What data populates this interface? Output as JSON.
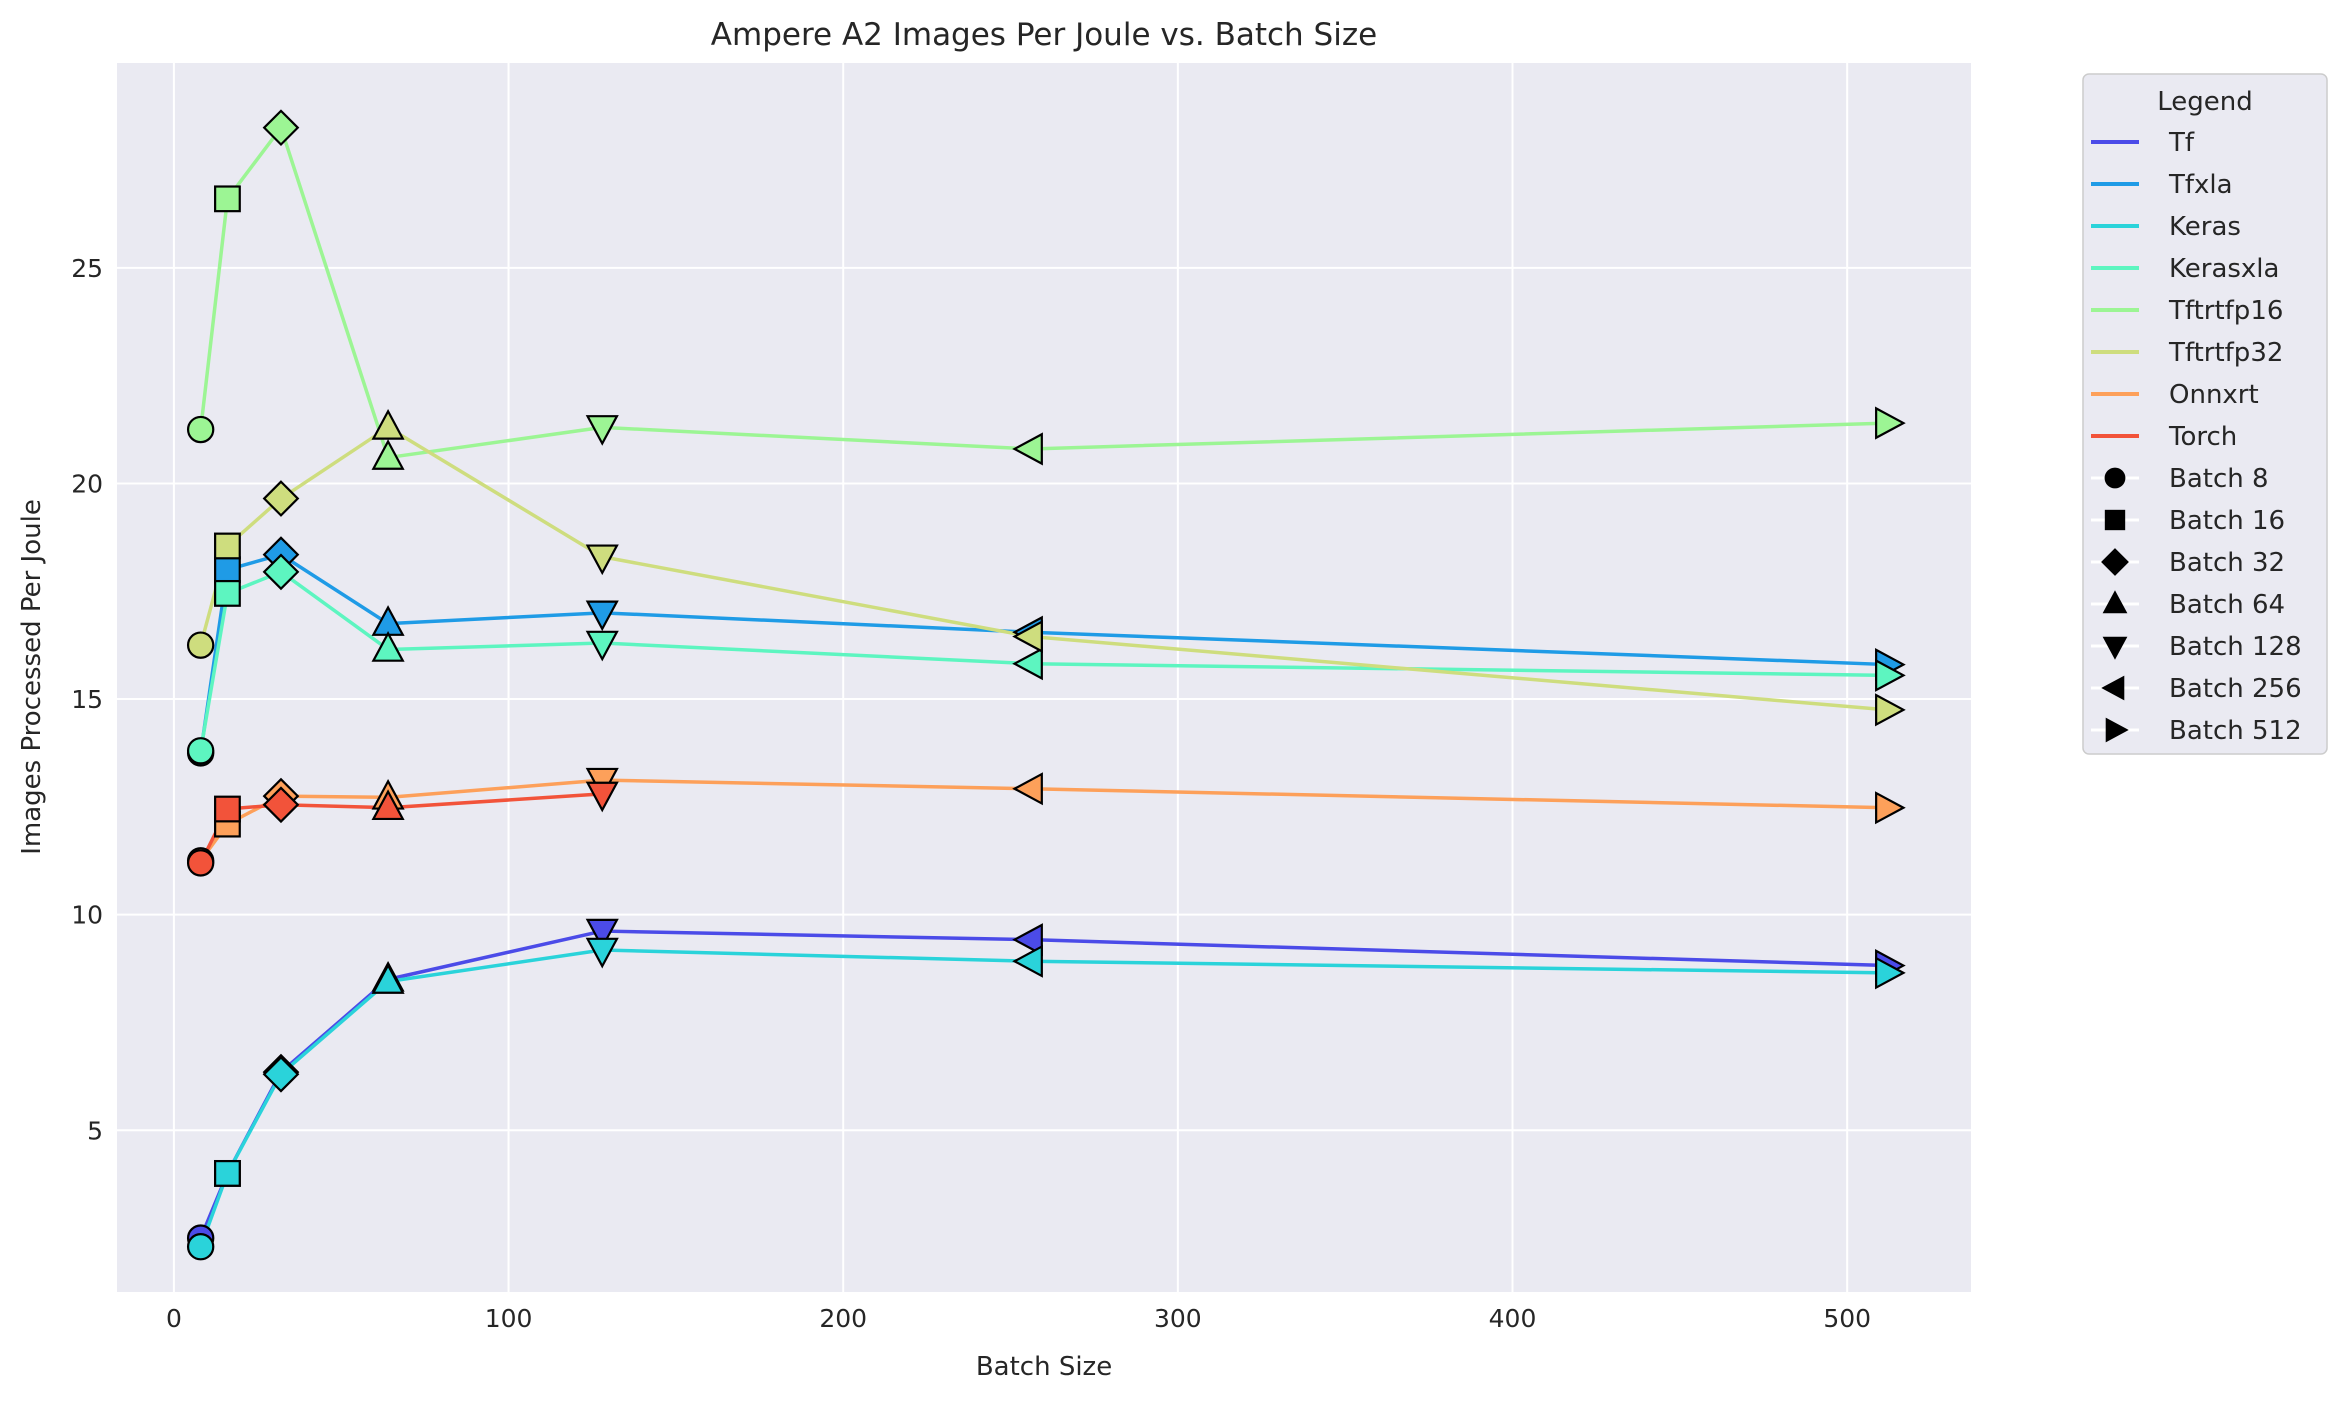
{
  "chart_data": {
    "type": "line",
    "title": "Ampere A2 Images Per Joule vs. Batch Size",
    "xlabel": "Batch Size",
    "ylabel": "Images Processed Per Joule",
    "xlim": [
      -17,
      537
    ],
    "ylim": [
      1.25,
      29.75
    ],
    "xticks": [
      0,
      100,
      200,
      300,
      400,
      500
    ],
    "yticks": [
      5,
      10,
      15,
      20,
      25
    ],
    "grid": true,
    "x": [
      8,
      16,
      32,
      64,
      128,
      256,
      512
    ],
    "series": [
      {
        "name": "Tf",
        "color": "#4b4be8",
        "values": [
          2.5,
          4.0,
          6.35,
          8.5,
          9.62,
          9.42,
          8.82
        ]
      },
      {
        "name": "Tfxla",
        "color": "#1f9be6",
        "values": [
          13.75,
          18.0,
          18.35,
          16.75,
          17.0,
          16.55,
          15.8
        ]
      },
      {
        "name": "Keras",
        "color": "#2ad3da",
        "values": [
          2.3,
          4.0,
          6.3,
          8.45,
          9.18,
          8.92,
          8.65
        ]
      },
      {
        "name": "Kerasxla",
        "color": "#5df5c0",
        "values": [
          13.8,
          17.45,
          17.95,
          16.15,
          16.3,
          15.82,
          15.55
        ]
      },
      {
        "name": "Tftrtfp16",
        "color": "#9cf594",
        "values": [
          21.25,
          26.6,
          28.25,
          20.6,
          21.3,
          20.8,
          21.4
        ]
      },
      {
        "name": "Tftrtfp32",
        "color": "#cedd7e",
        "values": [
          16.25,
          18.55,
          19.65,
          21.3,
          18.3,
          16.45,
          14.75
        ]
      },
      {
        "name": "Onnxrt",
        "color": "#fda05a",
        "values": [
          11.25,
          12.1,
          12.75,
          12.72,
          13.12,
          12.92,
          12.48
        ]
      },
      {
        "name": "Torch",
        "color": "#f2533a",
        "values": [
          11.2,
          12.45,
          12.55,
          12.48,
          12.8,
          null,
          null
        ]
      }
    ],
    "marker_legend": [
      {
        "label": "Batch 8",
        "marker": "circle"
      },
      {
        "label": "Batch 16",
        "marker": "square"
      },
      {
        "label": "Batch 32",
        "marker": "diamond"
      },
      {
        "label": "Batch 64",
        "marker": "triangle-up"
      },
      {
        "label": "Batch 128",
        "marker": "triangle-down"
      },
      {
        "label": "Batch 256",
        "marker": "triangle-left"
      },
      {
        "label": "Batch 512",
        "marker": "triangle-right"
      }
    ],
    "legend": {
      "title": "Legend",
      "placement": "outside-right"
    },
    "background": "#eaeaf2",
    "grid_color": "#ffffff"
  }
}
